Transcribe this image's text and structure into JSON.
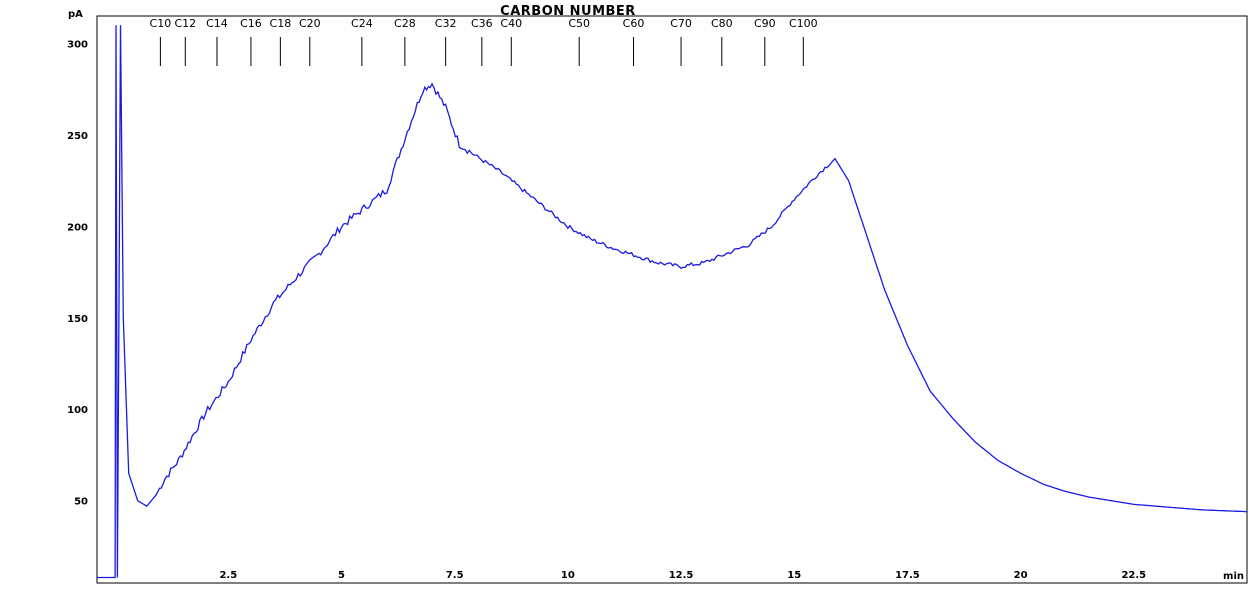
{
  "chart_data": {
    "type": "line",
    "title": "CARBON NUMBER",
    "ylabel": "pA",
    "xlabel": "min",
    "xlim": [
      -0.4,
      25
    ],
    "ylim": [
      5,
      315
    ],
    "grid": false,
    "line_color": "#1a1ae6",
    "x_ticks": [
      2.5,
      5,
      7.5,
      10,
      12.5,
      15,
      17.5,
      20,
      22.5
    ],
    "x_tick_labels": [
      "2.5",
      "5",
      "7.5",
      "10",
      "12.5",
      "15",
      "17.5",
      "20",
      "22.5"
    ],
    "y_ticks": [
      50,
      100,
      150,
      200,
      250,
      300
    ],
    "y_tick_labels": [
      "50",
      "100",
      "150",
      "200",
      "250",
      "300"
    ],
    "carbon_markers": [
      {
        "label": "C10",
        "x": 1.0
      },
      {
        "label": "C12",
        "x": 1.55
      },
      {
        "label": "C14",
        "x": 2.25
      },
      {
        "label": "C16",
        "x": 3.0
      },
      {
        "label": "C18",
        "x": 3.65
      },
      {
        "label": "C20",
        "x": 4.3
      },
      {
        "label": "C24",
        "x": 5.45
      },
      {
        "label": "C28",
        "x": 6.4
      },
      {
        "label": "C32",
        "x": 7.3
      },
      {
        "label": "C36",
        "x": 8.1
      },
      {
        "label": "C40",
        "x": 8.75
      },
      {
        "label": "C50",
        "x": 10.25
      },
      {
        "label": "C60",
        "x": 11.45
      },
      {
        "label": "C70",
        "x": 12.5
      },
      {
        "label": "C80",
        "x": 13.4
      },
      {
        "label": "C90",
        "x": 14.35
      },
      {
        "label": "C100",
        "x": 15.2
      }
    ],
    "series": [
      {
        "points": [
          [
            -0.4,
            8
          ],
          [
            0.0,
            8
          ],
          [
            0.02,
            310
          ],
          [
            0.05,
            8
          ],
          [
            0.12,
            310
          ],
          [
            0.18,
            150
          ],
          [
            0.3,
            65
          ],
          [
            0.5,
            50
          ],
          [
            0.7,
            47
          ],
          [
            0.9,
            53
          ],
          [
            1.1,
            62
          ],
          [
            1.4,
            72
          ],
          [
            1.7,
            85
          ],
          [
            2.0,
            98
          ],
          [
            2.5,
            115
          ],
          [
            3.0,
            138
          ],
          [
            3.5,
            158
          ],
          [
            4.0,
            172
          ],
          [
            4.5,
            185
          ],
          [
            5.0,
            200
          ],
          [
            5.5,
            210
          ],
          [
            6.0,
            220
          ],
          [
            6.5,
            255
          ],
          [
            6.8,
            275
          ],
          [
            7.0,
            278
          ],
          [
            7.3,
            265
          ],
          [
            7.6,
            245
          ],
          [
            8.0,
            238
          ],
          [
            8.5,
            230
          ],
          [
            9.0,
            220
          ],
          [
            9.5,
            210
          ],
          [
            10.0,
            200
          ],
          [
            10.5,
            193
          ],
          [
            11.0,
            188
          ],
          [
            11.5,
            184
          ],
          [
            12.0,
            180
          ],
          [
            12.5,
            178
          ],
          [
            13.0,
            180
          ],
          [
            13.5,
            185
          ],
          [
            14.0,
            190
          ],
          [
            14.5,
            200
          ],
          [
            15.0,
            215
          ],
          [
            15.5,
            228
          ],
          [
            15.9,
            237
          ],
          [
            16.2,
            225
          ],
          [
            16.6,
            195
          ],
          [
            17.0,
            165
          ],
          [
            17.5,
            135
          ],
          [
            18.0,
            110
          ],
          [
            18.5,
            95
          ],
          [
            19.0,
            82
          ],
          [
            19.5,
            72
          ],
          [
            20.0,
            65
          ],
          [
            20.5,
            59
          ],
          [
            21.0,
            55
          ],
          [
            21.5,
            52
          ],
          [
            22.0,
            50
          ],
          [
            22.5,
            48
          ],
          [
            23.0,
            47
          ],
          [
            24.0,
            45
          ],
          [
            25.0,
            44
          ]
        ]
      }
    ]
  }
}
